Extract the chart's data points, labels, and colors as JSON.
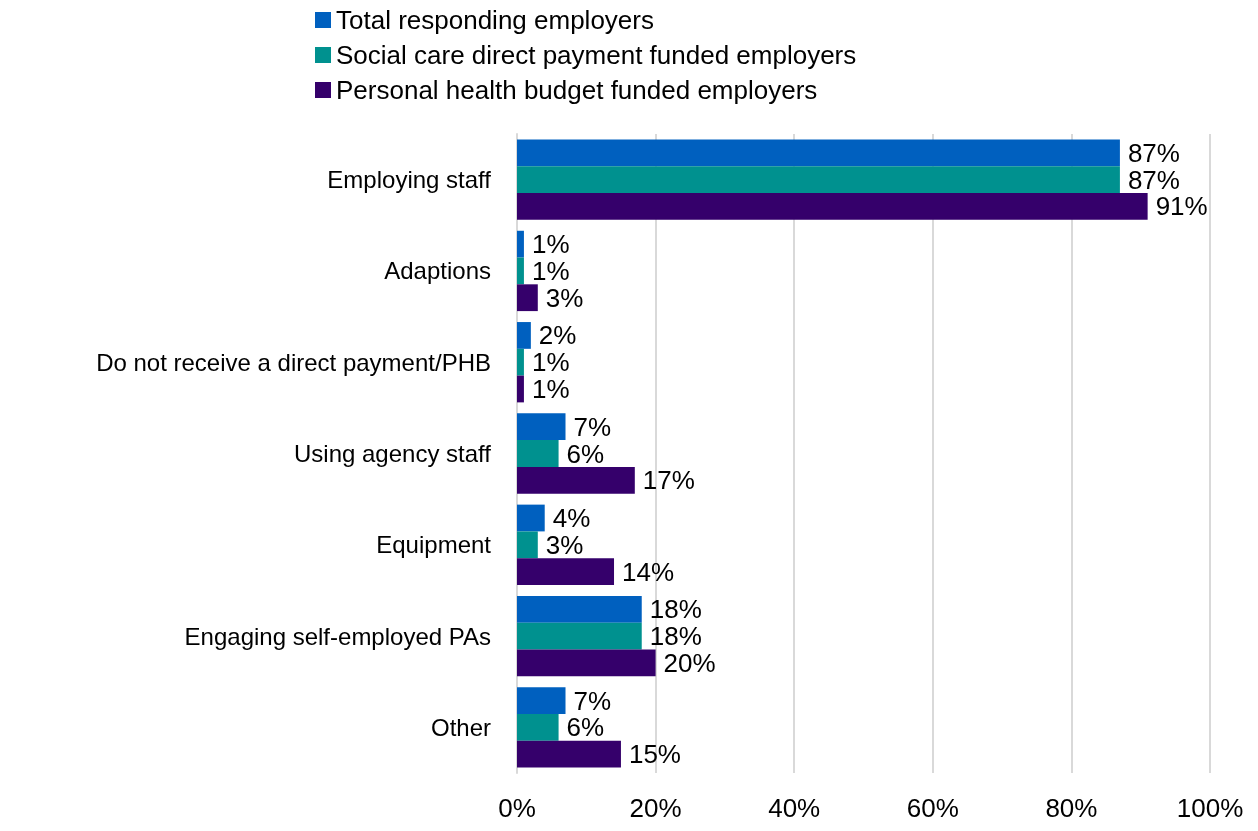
{
  "chart_data": {
    "type": "bar",
    "orientation": "horizontal",
    "categories": [
      "Employing staff",
      "Adaptions",
      "Do not receive a direct payment/PHB",
      "Using agency staff",
      "Equipment",
      "Engaging self-employed PAs",
      "Other"
    ],
    "series": [
      {
        "name": "Total responding employers",
        "color": "#0060bf",
        "values": [
          87,
          1,
          2,
          7,
          4,
          18,
          7
        ],
        "value_labels": [
          "87%",
          "1%",
          "2%",
          "7%",
          "4%",
          "18%",
          "7%"
        ]
      },
      {
        "name": "Social care direct payment funded employers",
        "color": "#00918f",
        "values": [
          87,
          1,
          1,
          6,
          3,
          18,
          6
        ],
        "value_labels": [
          "87%",
          "1%",
          "1%",
          "6%",
          "3%",
          "18%",
          "6%"
        ]
      },
      {
        "name": "Personal health budget funded employers",
        "color": "#35006b",
        "values": [
          91,
          3,
          1,
          17,
          14,
          20,
          15
        ],
        "value_labels": [
          "91%",
          "3%",
          "1%",
          "17%",
          "14%",
          "20%",
          "15%"
        ]
      }
    ],
    "xlim": [
      0,
      100
    ],
    "xticks": [
      {
        "value": 0,
        "label": "0%"
      },
      {
        "value": 20,
        "label": "20%"
      },
      {
        "value": 40,
        "label": "40%"
      },
      {
        "value": 60,
        "label": "60%"
      },
      {
        "value": 80,
        "label": "80%"
      },
      {
        "value": 100,
        "label": "100%"
      }
    ],
    "grid": "x",
    "legend": "top"
  }
}
